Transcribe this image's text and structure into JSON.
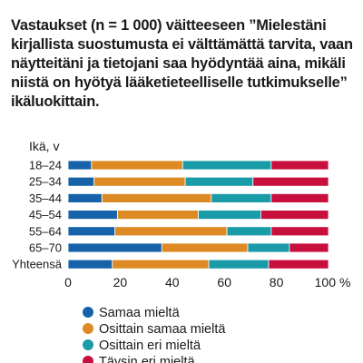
{
  "chart_data": {
    "type": "bar",
    "orientation": "horizontal",
    "stacked": true,
    "title": "Vastaukset (n = 1 000) väitteeseen ”Mielestäni kirjallista suostumusta ei välttämättä tarvita, vaan näytteitäni ja tietojani saa hyödyntää aina, mikäli niistä on hyötyä lääketieteelliselle tutkimukselle” ikäluokittain.",
    "ylabel": "Ikä, v",
    "xlabel": "",
    "x_unit": "%",
    "categories": [
      "18–24",
      "25–34",
      "35–44",
      "45–54",
      "55–64",
      "65–70",
      "Yhteensä"
    ],
    "x_ticks": [
      "0",
      "20",
      "40",
      "60",
      "80",
      "100"
    ],
    "xlim": [
      0,
      100
    ],
    "grid": false,
    "legend_position": "bottom",
    "series": [
      {
        "name": "Samaa mieltä",
        "color": "#1763aa",
        "values": [
          9,
          10,
          13,
          19,
          18,
          36,
          17
        ]
      },
      {
        "name": "Osittain samaa mieltä",
        "color": "#dd8a24",
        "values": [
          35,
          35,
          42,
          31,
          43,
          33,
          37
        ]
      },
      {
        "name": "Osittain eri mieltä",
        "color": "#1a9ba8",
        "values": [
          34,
          26,
          23,
          24,
          17,
          16,
          23
        ]
      },
      {
        "name": "Täysin eri mieltä",
        "color": "#c8103e",
        "values": [
          22,
          29,
          22,
          26,
          22,
          15,
          23
        ]
      }
    ]
  }
}
